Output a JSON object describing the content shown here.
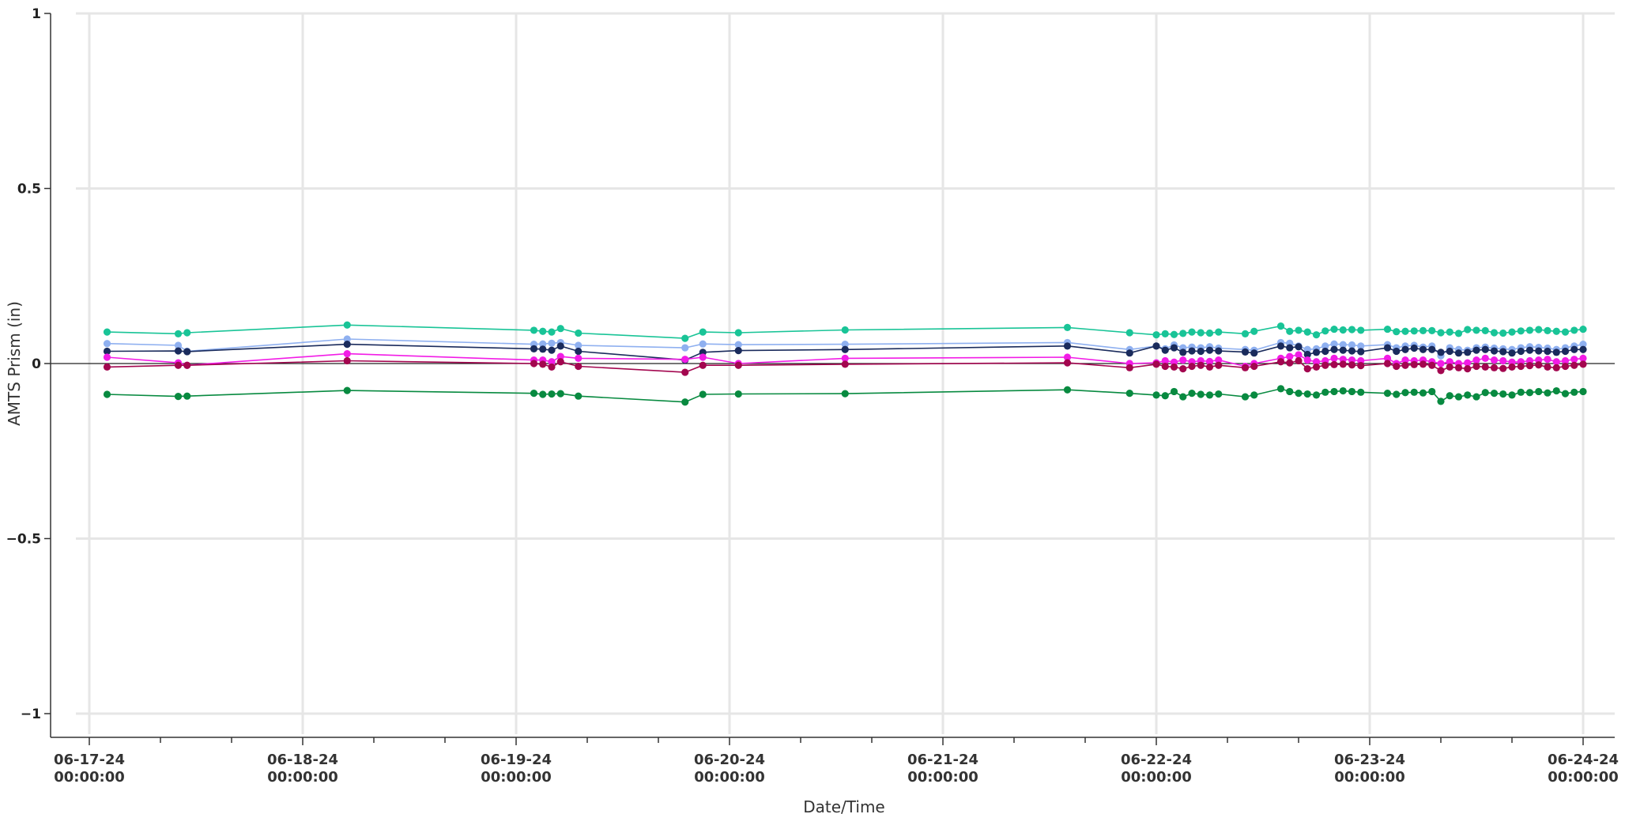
{
  "chart_data": {
    "type": "line",
    "title": "",
    "xlabel": "Date/Time",
    "ylabel": "AMTS Prism (in)",
    "ylim": [
      -1,
      1
    ],
    "xlim": [
      "06-17-24 00:00:00",
      "06-24-24 00:00:00"
    ],
    "y_ticks": [
      {
        "value": 1,
        "label": "1"
      },
      {
        "value": 0.5,
        "label": "0.5"
      },
      {
        "value": 0,
        "label": "0"
      },
      {
        "value": -0.5,
        "label": "−0.5"
      },
      {
        "value": -1,
        "label": "−1"
      }
    ],
    "x_ticks": [
      {
        "date": "06-17-24",
        "time": "00:00:00",
        "t": 0
      },
      {
        "date": "06-18-24",
        "time": "00:00:00",
        "t": 24
      },
      {
        "date": "06-19-24",
        "time": "00:00:00",
        "t": 48
      },
      {
        "date": "06-20-24",
        "time": "00:00:00",
        "t": 72
      },
      {
        "date": "06-21-24",
        "time": "00:00:00",
        "t": 96
      },
      {
        "date": "06-22-24",
        "time": "00:00:00",
        "t": 120
      },
      {
        "date": "06-23-24",
        "time": "00:00:00",
        "t": 144
      },
      {
        "date": "06-24-24",
        "time": "00:00:00",
        "t": 168
      }
    ],
    "grid": true,
    "x": [
      2,
      10,
      11,
      29,
      50,
      51,
      52,
      53,
      55,
      67,
      69,
      73,
      85,
      110,
      117,
      120,
      121,
      122,
      123,
      124,
      125,
      126,
      127,
      130,
      131,
      134,
      135,
      136,
      137,
      138,
      139,
      140,
      141,
      142,
      143,
      146,
      147,
      148,
      149,
      150,
      151,
      152,
      153,
      154,
      155,
      156,
      157,
      158,
      159,
      160,
      161,
      162,
      163,
      164,
      165,
      166,
      167,
      168
    ],
    "series": [
      {
        "color": "#19c497",
        "values": [
          0.09,
          0.085,
          0.088,
          0.11,
          0.095,
          0.092,
          0.09,
          0.1,
          0.087,
          0.072,
          0.09,
          0.088,
          0.096,
          0.103,
          0.088,
          0.082,
          0.085,
          0.083,
          0.086,
          0.09,
          0.088,
          0.087,
          0.09,
          0.085,
          0.092,
          0.107,
          0.092,
          0.095,
          0.09,
          0.082,
          0.093,
          0.098,
          0.096,
          0.097,
          0.095,
          0.098,
          0.091,
          0.092,
          0.093,
          0.094,
          0.094,
          0.088,
          0.09,
          0.086,
          0.097,
          0.095,
          0.094,
          0.088,
          0.087,
          0.09,
          0.093,
          0.095,
          0.097,
          0.094,
          0.092,
          0.09,
          0.095,
          0.098
        ]
      },
      {
        "color": "#8fb0f0",
        "values": [
          0.057,
          0.052,
          0.035,
          0.07,
          0.055,
          0.056,
          0.058,
          0.06,
          0.052,
          0.045,
          0.056,
          0.054,
          0.055,
          0.06,
          0.04,
          0.05,
          0.042,
          0.053,
          0.045,
          0.047,
          0.045,
          0.048,
          0.044,
          0.04,
          0.038,
          0.06,
          0.058,
          0.05,
          0.04,
          0.042,
          0.05,
          0.056,
          0.054,
          0.053,
          0.05,
          0.054,
          0.045,
          0.05,
          0.052,
          0.047,
          0.05,
          0.022,
          0.045,
          0.04,
          0.038,
          0.045,
          0.047,
          0.044,
          0.042,
          0.04,
          0.045,
          0.048,
          0.046,
          0.044,
          0.04,
          0.045,
          0.05,
          0.055
        ]
      },
      {
        "color": "#1a2b5c",
        "values": [
          0.035,
          0.036,
          0.034,
          0.055,
          0.042,
          0.041,
          0.038,
          0.05,
          0.035,
          0.01,
          0.032,
          0.037,
          0.04,
          0.05,
          0.03,
          0.05,
          0.038,
          0.045,
          0.032,
          0.036,
          0.035,
          0.038,
          0.036,
          0.033,
          0.03,
          0.05,
          0.045,
          0.048,
          0.026,
          0.032,
          0.035,
          0.04,
          0.038,
          0.036,
          0.034,
          0.045,
          0.035,
          0.04,
          0.044,
          0.04,
          0.04,
          0.032,
          0.035,
          0.03,
          0.032,
          0.038,
          0.04,
          0.036,
          0.034,
          0.03,
          0.035,
          0.038,
          0.036,
          0.035,
          0.032,
          0.035,
          0.04,
          0.04
        ]
      },
      {
        "color": "#f21ce6",
        "values": [
          0.018,
          0.002,
          -0.005,
          0.028,
          0.01,
          0.01,
          0.005,
          0.02,
          0.015,
          0.012,
          0.018,
          0.0,
          0.015,
          0.018,
          0.0,
          0.002,
          0.008,
          0.004,
          0.01,
          0.005,
          0.008,
          0.006,
          0.01,
          -0.008,
          0.0,
          0.015,
          0.02,
          0.025,
          0.01,
          0.005,
          0.008,
          0.015,
          0.012,
          0.01,
          0.008,
          0.015,
          0.0,
          0.01,
          0.008,
          0.01,
          0.005,
          0.0,
          0.005,
          0.0,
          0.002,
          0.01,
          0.015,
          0.01,
          0.008,
          0.004,
          0.005,
          0.008,
          0.01,
          0.012,
          0.005,
          0.008,
          0.012,
          0.015
        ]
      },
      {
        "color": "#a3064f",
        "values": [
          -0.01,
          -0.005,
          -0.005,
          0.008,
          0.0,
          -0.002,
          -0.01,
          0.005,
          -0.008,
          -0.025,
          -0.005,
          -0.005,
          -0.002,
          0.002,
          -0.012,
          -0.002,
          -0.008,
          -0.01,
          -0.015,
          -0.008,
          -0.005,
          -0.01,
          -0.005,
          -0.012,
          -0.008,
          0.005,
          0.002,
          0.008,
          -0.015,
          -0.01,
          -0.005,
          -0.003,
          -0.002,
          -0.004,
          -0.006,
          0.0,
          -0.008,
          -0.005,
          -0.003,
          -0.002,
          -0.005,
          -0.02,
          -0.01,
          -0.012,
          -0.015,
          -0.008,
          -0.01,
          -0.012,
          -0.014,
          -0.01,
          -0.008,
          -0.006,
          -0.004,
          -0.01,
          -0.012,
          -0.008,
          -0.005,
          -0.002
        ]
      },
      {
        "color": "#088a40",
        "values": [
          -0.088,
          -0.094,
          -0.093,
          -0.077,
          -0.085,
          -0.088,
          -0.087,
          -0.086,
          -0.093,
          -0.11,
          -0.088,
          -0.087,
          -0.086,
          -0.075,
          -0.085,
          -0.09,
          -0.092,
          -0.08,
          -0.095,
          -0.085,
          -0.088,
          -0.09,
          -0.087,
          -0.095,
          -0.09,
          -0.072,
          -0.08,
          -0.085,
          -0.087,
          -0.09,
          -0.082,
          -0.08,
          -0.078,
          -0.08,
          -0.082,
          -0.085,
          -0.088,
          -0.083,
          -0.082,
          -0.084,
          -0.08,
          -0.108,
          -0.092,
          -0.095,
          -0.09,
          -0.095,
          -0.083,
          -0.085,
          -0.087,
          -0.09,
          -0.082,
          -0.083,
          -0.08,
          -0.084,
          -0.078,
          -0.086,
          -0.082,
          -0.08
        ]
      }
    ]
  }
}
